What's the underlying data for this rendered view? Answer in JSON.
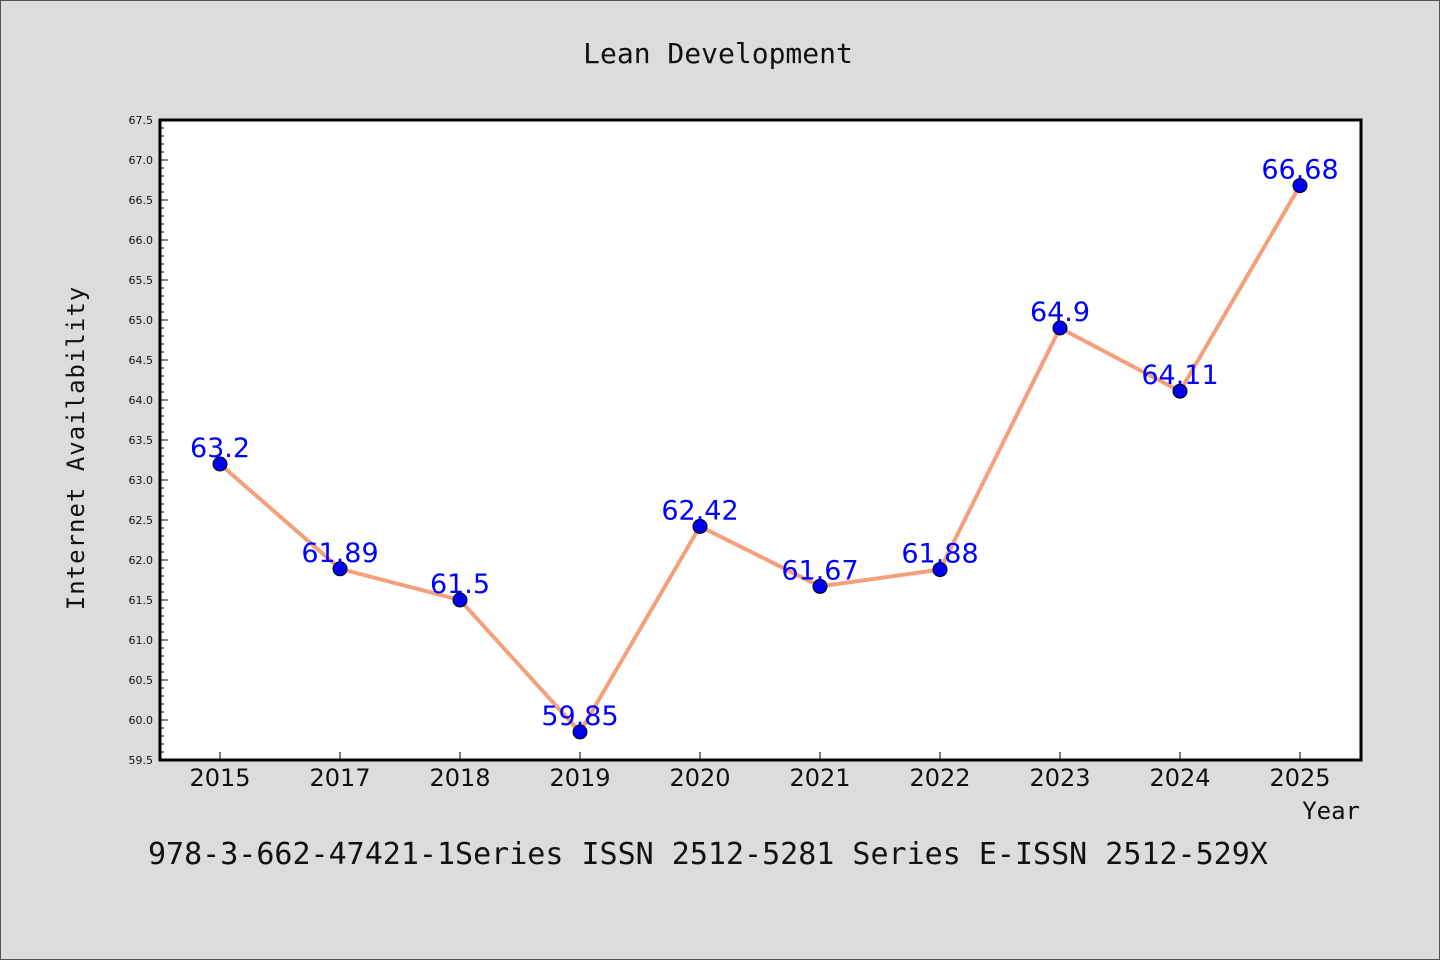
{
  "chart_data": {
    "type": "line",
    "title": "Lean Development",
    "xlabel": "Year",
    "ylabel": "Internet Availability",
    "categories": [
      "2015",
      "2017",
      "2018",
      "2019",
      "2020",
      "2021",
      "2022",
      "2023",
      "2024",
      "2025"
    ],
    "series": [
      {
        "values": [
          63.2,
          61.89,
          61.5,
          59.85,
          62.42,
          61.67,
          61.88,
          64.9,
          64.11,
          66.68
        ],
        "data_labels": [
          "63.2",
          "61.89",
          "61.5",
          "59.85",
          "62.42",
          "61.67",
          "61.88",
          "64.9",
          "64.11",
          "66.68"
        ]
      }
    ],
    "ylim": [
      59.5,
      67.5
    ],
    "yticks": [
      "59.5",
      "60.0",
      "60.5",
      "61.0",
      "61.5",
      "62.0",
      "62.5",
      "63.0",
      "63.5",
      "64.0",
      "64.5",
      "65.0",
      "65.5",
      "66.0",
      "66.5",
      "67.0",
      "67.5"
    ],
    "grid": false,
    "legend": "none",
    "colors": {
      "line": "#f4a07c",
      "marker": "#0000ee",
      "label": "#0000ff",
      "background": "#dcdcdc",
      "plot_background": "#ffffff"
    }
  },
  "footer_text": "978-3-662-47421-1Series ISSN 2512-5281 Series E-ISSN 2512-529X"
}
